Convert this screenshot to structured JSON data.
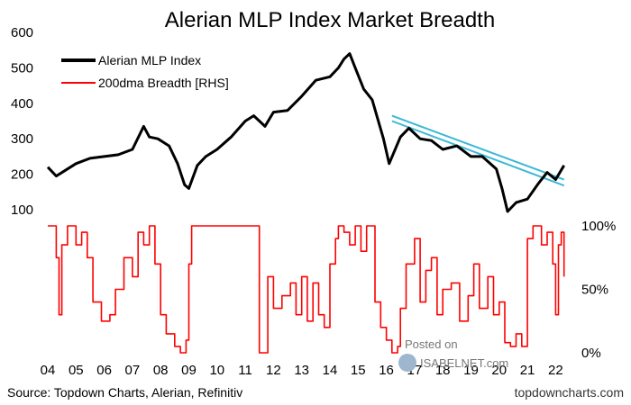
{
  "chart_data": {
    "type": "line",
    "title": "Alerian MLP Index Market Breadth",
    "source": "Source: Topdown Charts, Alerian, Refinitiv",
    "brand": "topdowncharts.com",
    "watermark": {
      "line1": "Posted on",
      "line2": "ISABELNET.com"
    },
    "x_ticks": [
      "04",
      "05",
      "06",
      "07",
      "08",
      "09",
      "10",
      "11",
      "12",
      "13",
      "14",
      "15",
      "16",
      "17",
      "18",
      "19",
      "20",
      "21",
      "22"
    ],
    "x_tick_years": [
      2004,
      2005,
      2006,
      2007,
      2008,
      2009,
      2010,
      2011,
      2012,
      2013,
      2014,
      2015,
      2016,
      2017,
      2018,
      2019,
      2020,
      2021,
      2022
    ],
    "xlim": [
      2004.0,
      2022.5
    ],
    "legend_placement": "top-left",
    "colors": {
      "index": "#000000",
      "breadth": "#ff0000",
      "trend": "#3cb8d6"
    },
    "left_axis": {
      "ylim": [
        100,
        600
      ],
      "ticks": [
        100,
        200,
        300,
        400,
        500,
        600
      ]
    },
    "right_axis": {
      "ylim": [
        0,
        1
      ],
      "tick_values": [
        0,
        0.5,
        1
      ],
      "ticks": [
        "0%",
        "50%",
        "100%"
      ]
    },
    "series": [
      {
        "name": "Alerian MLP Index",
        "axis": "left",
        "x": [
          2004.0,
          2004.3,
          2004.6,
          2005.0,
          2005.5,
          2006.0,
          2006.5,
          2007.0,
          2007.4,
          2007.6,
          2007.9,
          2008.3,
          2008.6,
          2008.85,
          2009.0,
          2009.3,
          2009.6,
          2010.0,
          2010.5,
          2011.0,
          2011.3,
          2011.7,
          2012.0,
          2012.5,
          2013.0,
          2013.5,
          2014.0,
          2014.3,
          2014.5,
          2014.7,
          2014.9,
          2015.2,
          2015.5,
          2015.9,
          2016.1,
          2016.5,
          2016.8,
          2017.2,
          2017.6,
          2018.0,
          2018.5,
          2019.0,
          2019.4,
          2019.9,
          2020.1,
          2020.3,
          2020.6,
          2021.0,
          2021.4,
          2021.7,
          2022.0,
          2022.3
        ],
        "y": [
          220,
          195,
          210,
          230,
          245,
          250,
          255,
          270,
          335,
          305,
          300,
          280,
          230,
          170,
          160,
          225,
          250,
          270,
          305,
          350,
          365,
          335,
          375,
          380,
          420,
          465,
          475,
          500,
          525,
          540,
          500,
          440,
          410,
          300,
          230,
          305,
          330,
          300,
          295,
          270,
          280,
          250,
          250,
          215,
          160,
          95,
          120,
          130,
          175,
          205,
          185,
          225
        ]
      },
      {
        "name": "200dma Breadth [RHS]",
        "axis": "right",
        "x": [
          2004.0,
          2004.2,
          2004.3,
          2004.4,
          2004.5,
          2004.7,
          2005.0,
          2005.2,
          2005.4,
          2005.6,
          2005.9,
          2006.2,
          2006.4,
          2006.7,
          2007.0,
          2007.2,
          2007.4,
          2007.6,
          2007.8,
          2008.0,
          2008.2,
          2008.5,
          2008.7,
          2008.9,
          2009.0,
          2009.1,
          2009.3,
          2009.5,
          2009.8,
          2010.0,
          2010.3,
          2010.6,
          2011.0,
          2011.2,
          2011.5,
          2011.8,
          2012.0,
          2012.3,
          2012.6,
          2012.8,
          2013.0,
          2013.2,
          2013.4,
          2013.6,
          2013.8,
          2014.0,
          2014.2,
          2014.3,
          2014.5,
          2014.7,
          2014.9,
          2015.1,
          2015.3,
          2015.6,
          2015.8,
          2016.0,
          2016.2,
          2016.4,
          2016.5,
          2016.7,
          2017.0,
          2017.2,
          2017.4,
          2017.6,
          2017.8,
          2018.0,
          2018.3,
          2018.6,
          2018.9,
          2019.1,
          2019.3,
          2019.6,
          2019.8,
          2020.0,
          2020.2,
          2020.4,
          2020.6,
          2020.8,
          2021.0,
          2021.2,
          2021.5,
          2021.7,
          2021.9,
          2022.0,
          2022.1,
          2022.2,
          2022.3
        ],
        "y": [
          1.0,
          1.0,
          0.75,
          0.3,
          0.85,
          1.0,
          0.85,
          0.95,
          0.75,
          0.4,
          0.25,
          0.3,
          0.5,
          0.75,
          0.6,
          0.95,
          0.85,
          1.0,
          0.7,
          0.3,
          0.15,
          0.05,
          0.0,
          0.1,
          0.7,
          1.0,
          1.0,
          1.0,
          1.0,
          1.0,
          1.0,
          1.0,
          1.0,
          1.0,
          0.0,
          0.6,
          0.35,
          0.45,
          0.55,
          0.3,
          0.6,
          0.25,
          0.55,
          0.3,
          0.2,
          0.7,
          0.9,
          1.0,
          0.95,
          0.85,
          1.0,
          0.8,
          1.0,
          0.4,
          0.2,
          0.1,
          0.0,
          0.05,
          0.35,
          0.7,
          0.9,
          0.4,
          0.65,
          0.75,
          0.3,
          0.5,
          0.55,
          0.25,
          0.45,
          0.7,
          0.35,
          0.6,
          0.3,
          0.4,
          0.08,
          0.05,
          0.15,
          0.05,
          0.9,
          1.0,
          0.85,
          0.95,
          0.7,
          0.3,
          0.85,
          0.95,
          0.6
        ]
      }
    ],
    "trend_channel": {
      "x": [
        2016.2,
        2022.3
      ],
      "upper": [
        365,
        185
      ],
      "lower": [
        350,
        168
      ]
    }
  }
}
